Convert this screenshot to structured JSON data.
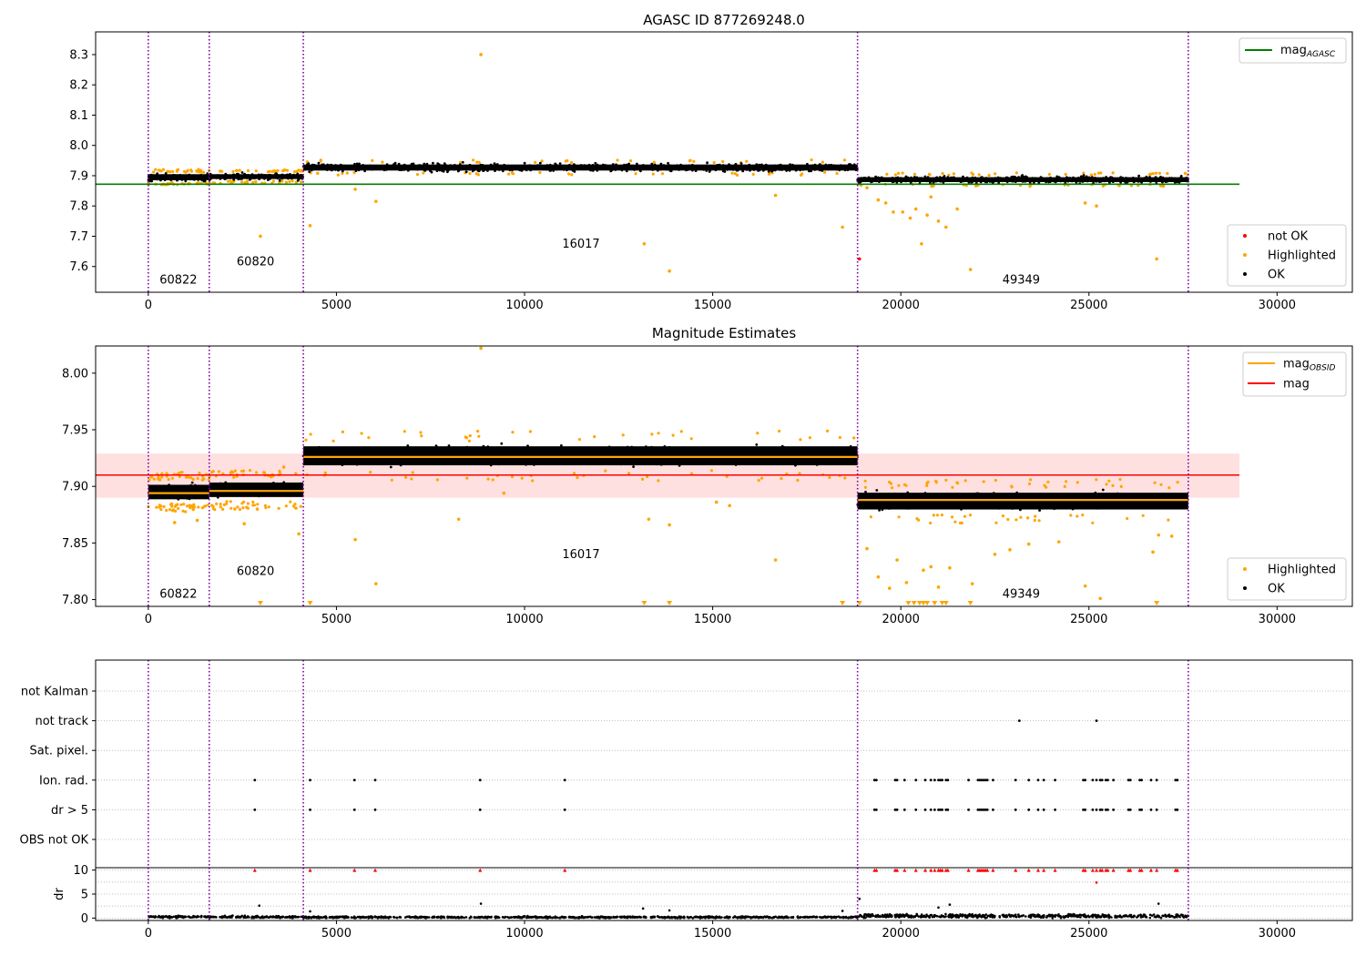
{
  "figure": {
    "top_title": "AGASC ID 877269248.0",
    "middle_title": "Magnitude Estimates"
  },
  "chart_data": [
    {
      "type": "scatter",
      "title": "AGASC ID 877269248.0",
      "xlim": [
        -1400,
        32000
      ],
      "ylim": [
        7.515,
        8.375
      ],
      "x_ticks": [
        0,
        5000,
        10000,
        15000,
        20000,
        25000,
        30000
      ],
      "y_ticks": [
        7.6,
        7.7,
        7.8,
        7.9,
        8.0,
        8.1,
        8.2,
        8.3
      ],
      "obs_boundaries": [
        0,
        1620,
        4120,
        18850,
        27640
      ],
      "obs_labels": [
        {
          "text": "60822",
          "x": 800,
          "y": 7.555
        },
        {
          "text": "60820",
          "x": 2850,
          "y": 7.615
        },
        {
          "text": "16017",
          "x": 11500,
          "y": 7.675
        },
        {
          "text": "49349",
          "x": 23200,
          "y": 7.555
        }
      ],
      "reference_lines": [
        {
          "name": "mag_AGASC",
          "y": 7.872,
          "x_range": [
            -1400,
            29000
          ],
          "color": "#008000"
        }
      ],
      "segments": [
        {
          "x": [
            0,
            1620
          ],
          "mean": 7.895,
          "spread": 0.016
        },
        {
          "x": [
            1620,
            4120
          ],
          "mean": 7.897,
          "spread": 0.014
        },
        {
          "x": [
            4120,
            18850
          ],
          "mean": 7.927,
          "spread": 0.016
        },
        {
          "x": [
            18850,
            27640
          ],
          "mean": 7.887,
          "spread": 0.014
        }
      ],
      "highlighted_outliers": [
        [
          2980,
          7.7
        ],
        [
          4300,
          7.735
        ],
        [
          5500,
          7.855
        ],
        [
          6050,
          7.815
        ],
        [
          8840,
          8.3
        ],
        [
          13180,
          7.675
        ],
        [
          13850,
          7.585
        ],
        [
          16670,
          7.835
        ],
        [
          18450,
          7.73
        ],
        [
          19100,
          7.86
        ],
        [
          19400,
          7.82
        ],
        [
          19600,
          7.81
        ],
        [
          19800,
          7.78
        ],
        [
          20050,
          7.78
        ],
        [
          20250,
          7.76
        ],
        [
          20400,
          7.79
        ],
        [
          20550,
          7.675
        ],
        [
          20700,
          7.77
        ],
        [
          20800,
          7.83
        ],
        [
          21000,
          7.75
        ],
        [
          21200,
          7.73
        ],
        [
          21500,
          7.79
        ],
        [
          21850,
          7.59
        ],
        [
          24900,
          7.81
        ],
        [
          25200,
          7.8
        ],
        [
          26800,
          7.625
        ]
      ],
      "not_ok": [
        [
          18900,
          7.625
        ]
      ],
      "legend": [
        {
          "label": "not OK",
          "color": "#ff0000"
        },
        {
          "label": "Highlighted",
          "color": "#ffa500"
        },
        {
          "label": "OK",
          "color": "#000000"
        }
      ],
      "line_legend": {
        "label": "mag",
        "subscript": "AGASC",
        "color": "#008000"
      }
    },
    {
      "type": "scatter",
      "title": "Magnitude Estimates",
      "xlim": [
        -1400,
        32000
      ],
      "ylim": [
        7.794,
        8.024
      ],
      "x_ticks": [
        0,
        5000,
        10000,
        15000,
        20000,
        25000,
        30000
      ],
      "y_ticks": [
        7.8,
        7.85,
        7.9,
        7.95,
        8.0
      ],
      "obs_boundaries": [
        0,
        1620,
        4120,
        18850,
        27640
      ],
      "obs_labels": [
        {
          "text": "60822",
          "x": 800,
          "y": 7.805
        },
        {
          "text": "60820",
          "x": 2850,
          "y": 7.825
        },
        {
          "text": "16017",
          "x": 11500,
          "y": 7.84
        },
        {
          "text": "49349",
          "x": 23200,
          "y": 7.805
        }
      ],
      "mag_line": {
        "y": 7.91,
        "band": [
          7.89,
          7.929
        ],
        "x_range": [
          -1400,
          29000
        ],
        "color": "#ff0000"
      },
      "mag_obsid": [
        {
          "x": [
            0,
            1620
          ],
          "y": 7.894
        },
        {
          "x": [
            1620,
            4120
          ],
          "y": 7.896
        },
        {
          "x": [
            4120,
            18850
          ],
          "y": 7.926
        },
        {
          "x": [
            18850,
            27640
          ],
          "y": 7.888
        }
      ],
      "segments": [
        {
          "x": [
            0,
            1620
          ],
          "mean": 7.895,
          "spread": 0.008
        },
        {
          "x": [
            1620,
            4120
          ],
          "mean": 7.897,
          "spread": 0.008
        },
        {
          "x": [
            4120,
            18850
          ],
          "mean": 7.927,
          "spread": 0.01
        },
        {
          "x": [
            18850,
            27640
          ],
          "mean": 7.887,
          "spread": 0.009
        }
      ],
      "highlighted_outliers": [
        [
          700,
          7.868
        ],
        [
          1300,
          7.87
        ],
        [
          2300,
          7.88
        ],
        [
          2550,
          7.867
        ],
        [
          3600,
          7.917
        ],
        [
          4000,
          7.858
        ],
        [
          5500,
          7.853
        ],
        [
          6050,
          7.814
        ],
        [
          8250,
          7.871
        ],
        [
          8840,
          8.022
        ],
        [
          9450,
          7.894
        ],
        [
          13300,
          7.871
        ],
        [
          13850,
          7.866
        ],
        [
          15100,
          7.886
        ],
        [
          15450,
          7.883
        ],
        [
          16670,
          7.835
        ],
        [
          19100,
          7.845
        ],
        [
          19400,
          7.82
        ],
        [
          19700,
          7.81
        ],
        [
          19900,
          7.835
        ],
        [
          20150,
          7.815
        ],
        [
          20600,
          7.826
        ],
        [
          20800,
          7.829
        ],
        [
          21000,
          7.811
        ],
        [
          21300,
          7.828
        ],
        [
          21900,
          7.814
        ],
        [
          22500,
          7.84
        ],
        [
          22900,
          7.844
        ],
        [
          23400,
          7.849
        ],
        [
          24200,
          7.851
        ],
        [
          24900,
          7.812
        ],
        [
          25300,
          7.801
        ],
        [
          26700,
          7.842
        ],
        [
          26850,
          7.857
        ],
        [
          27200,
          7.856
        ]
      ],
      "offscale_below": [
        2980,
        4300,
        13180,
        13850,
        18450,
        18900,
        20200,
        20350,
        20500,
        20600,
        20700,
        20900,
        21100,
        21200,
        21850,
        26800
      ],
      "legend": [
        {
          "label": "Highlighted",
          "color": "#ffa500"
        },
        {
          "label": "OK",
          "color": "#000000"
        }
      ],
      "line_legend": [
        {
          "label": "mag",
          "subscript": "OBSID",
          "color": "#ffa500"
        },
        {
          "label": "mag",
          "subscript": "",
          "color": "#ff0000"
        }
      ]
    },
    {
      "type": "scatter",
      "xlim": [
        -1400,
        32000
      ],
      "x_ticks": [
        0,
        5000,
        10000,
        15000,
        20000,
        25000,
        30000
      ],
      "flag_rows": [
        "not Kalman",
        "not track",
        "Sat. pixel.",
        "Ion. rad.",
        "dr > 5",
        "OBS not OK"
      ],
      "flag_points": {
        "not track": [
          23150,
          25200
        ],
        "Ion. rad.": [
          2830,
          4300,
          5480,
          6030,
          8820,
          11070,
          19300,
          19350,
          19850,
          19900,
          20100,
          20400,
          20650,
          20800,
          20900,
          21000,
          21050,
          21100,
          21200,
          21250,
          21800,
          22050,
          22100,
          22150,
          22200,
          22250,
          22300,
          22450,
          23050,
          23400,
          23650,
          23800,
          24100,
          24850,
          24900,
          25100,
          25200,
          25300,
          25350,
          25450,
          25500,
          25650,
          26050,
          26100,
          26350,
          26400,
          26650,
          26800,
          27300,
          27350
        ],
        "dr > 5": [
          2830,
          4300,
          5480,
          6030,
          8820,
          11070,
          19300,
          19350,
          19850,
          19900,
          20100,
          20400,
          20650,
          20800,
          20900,
          21000,
          21050,
          21100,
          21200,
          21250,
          21800,
          22050,
          22100,
          22150,
          22200,
          22250,
          22300,
          22450,
          23050,
          23400,
          23650,
          23800,
          24100,
          24850,
          24900,
          25100,
          25200,
          25300,
          25350,
          25450,
          25500,
          25650,
          26050,
          26100,
          26350,
          26400,
          26650,
          26800,
          27300,
          27350
        ]
      },
      "dr_panel": {
        "ylabel": "dr",
        "ylim": [
          -0.5,
          10.5
        ],
        "y_ticks": [
          0,
          5,
          10
        ],
        "capped_at_10": [
          2830,
          4300,
          5480,
          6030,
          8820,
          11070,
          19300,
          19350,
          19850,
          19900,
          20100,
          20400,
          20650,
          20800,
          20900,
          21000,
          21050,
          21100,
          21200,
          21250,
          21800,
          22050,
          22100,
          22150,
          22200,
          22250,
          22300,
          22450,
          23050,
          23400,
          23650,
          23800,
          24100,
          24850,
          24900,
          25100,
          25200,
          25300,
          25350,
          25450,
          25500,
          25650,
          26050,
          26100,
          26350,
          26400,
          26650,
          26800,
          27300,
          27350
        ],
        "outliers": [
          [
            2950,
            2.6
          ],
          [
            4300,
            1.4
          ],
          [
            8840,
            3.0
          ],
          [
            13150,
            2.0
          ],
          [
            13850,
            1.6
          ],
          [
            18450,
            1.5
          ],
          [
            18900,
            4.0
          ],
          [
            21000,
            2.2
          ],
          [
            21300,
            2.8
          ],
          [
            25200,
            7.4
          ],
          [
            26850,
            3.0
          ]
        ],
        "segments": [
          {
            "x": [
              0,
              1620
            ],
            "mean": 0.25,
            "spread": 0.25
          },
          {
            "x": [
              1620,
              4120
            ],
            "mean": 0.25,
            "spread": 0.25
          },
          {
            "x": [
              4120,
              18850
            ],
            "mean": 0.18,
            "spread": 0.2
          },
          {
            "x": [
              18850,
              27640
            ],
            "mean": 0.45,
            "spread": 0.4
          }
        ]
      }
    }
  ]
}
